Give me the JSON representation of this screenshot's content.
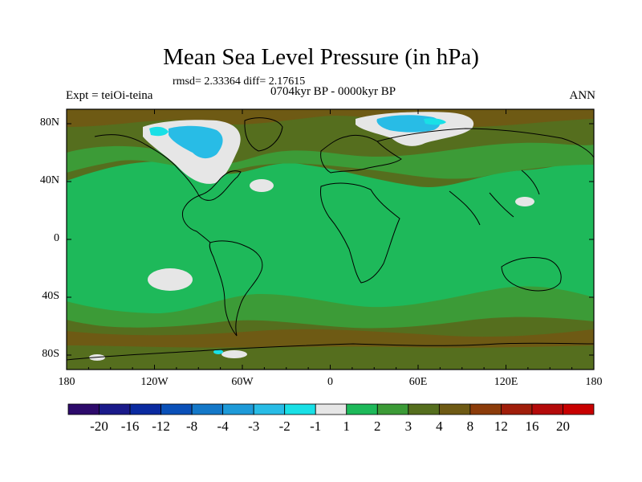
{
  "figure": {
    "title": "Mean Sea Level Pressure (in hPa)",
    "stats": "rmsd= 2.33364 diff= 2.17615",
    "subtitle": "0704kyr BP - 0000kyr BP",
    "left_label": "Expt = teiOi-teina",
    "right_label": "ANN"
  },
  "chart_data": {
    "type": "heatmap",
    "title": "Mean Sea Level Pressure (in hPa)",
    "subtitle": "0704kyr BP - 0000kyr BP",
    "variable": "Mean Sea Level Pressure difference",
    "units": "hPa",
    "projection": "cylindrical equidistant",
    "xlim": [
      -180,
      180
    ],
    "ylim": [
      -90,
      90
    ],
    "x_ticks": [
      {
        "value": -180,
        "label": "180"
      },
      {
        "value": -120,
        "label": "120W"
      },
      {
        "value": -60,
        "label": "60W"
      },
      {
        "value": 0,
        "label": "0"
      },
      {
        "value": 60,
        "label": "60E"
      },
      {
        "value": 120,
        "label": "120E"
      },
      {
        "value": 180,
        "label": "180"
      }
    ],
    "y_ticks": [
      {
        "value": 80,
        "label": "80N"
      },
      {
        "value": 40,
        "label": "40N"
      },
      {
        "value": 0,
        "label": "0"
      },
      {
        "value": -40,
        "label": "40S"
      },
      {
        "value": -80,
        "label": "80S"
      }
    ],
    "colorbar": {
      "orientation": "horizontal",
      "levels": [
        -20,
        -16,
        -12,
        -8,
        -4,
        -3,
        -2,
        -1,
        1,
        2,
        3,
        4,
        8,
        12,
        16,
        20
      ],
      "level_labels": [
        "-20",
        "-16",
        "-12",
        "-8",
        "-4",
        "-3",
        "-2",
        "-1",
        "1",
        "2",
        "3",
        "4",
        "8",
        "12",
        "16",
        "20"
      ],
      "colors": [
        "#2d0a6b",
        "#1a1a8a",
        "#0a2aa0",
        "#0a50b8",
        "#1478c8",
        "#1e9ad8",
        "#28bce6",
        "#19e0e6",
        "#e6e6e6",
        "#1eb95a",
        "#3c9b37",
        "#556e1e",
        "#6e5a14",
        "#8c3c0a",
        "#a01e0a",
        "#b40a0a",
        "#c80000"
      ]
    },
    "regions": [
      {
        "name": "background-tropics-band",
        "band": "2 to 3",
        "color_index": 10
      },
      {
        "name": "background-midlatitude",
        "band": "3 to 4",
        "color_index": 11
      },
      {
        "name": "north-america-ice-sheet",
        "band": "-1 to 1",
        "color_index": 8
      },
      {
        "name": "north-america-core",
        "band": "-3 to -2",
        "color_index": 6
      },
      {
        "name": "scandinavia-ice-sheet",
        "band": "-1 to 1",
        "color_index": 8
      },
      {
        "name": "scandinavia-core",
        "band": "-3 to -2",
        "color_index": 6
      },
      {
        "name": "south-pacific-anomaly",
        "band": "-1 to 1",
        "color_index": 8
      },
      {
        "name": "north-atlantic-anomaly",
        "band": "-1 to 1",
        "color_index": 8
      },
      {
        "name": "north-pacific-anomaly",
        "band": "-1 to 1",
        "color_index": 8
      },
      {
        "name": "antarctic-anomalies",
        "band": "-1 to 1",
        "color_index": 8
      }
    ]
  }
}
